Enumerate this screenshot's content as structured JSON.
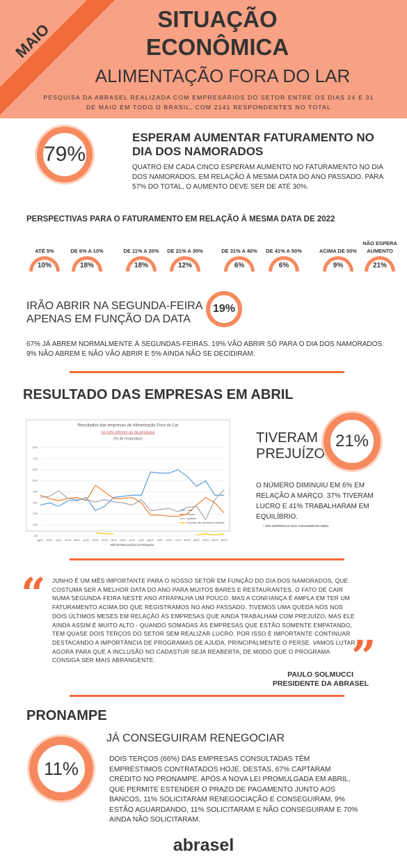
{
  "header": {
    "badge": "MAIO",
    "title_line1": "SITUAÇÃO",
    "title_line2": "ECONÔMICA",
    "subtitle": "ALIMENTAÇÃO FORA DO LAR",
    "description": "PESQUISA DA ABRASEL REALIZADA COM EMPRESÁRIOS DO SETOR ENTRE OS DIAS 24 E 31 DE MAIO EM TODO O BRASIL, COM 2141 RESPONDENTES NO TOTAL"
  },
  "valentines": {
    "percent": "79%",
    "heading": "ESPERAM AUMENTAR FATURAMENTO NO DIA DOS NAMORADOS",
    "text": "QUATRO EM CADA CINCO ESPERAM AUMENTO NO FATURAMENTO NO DIA DOS NAMORADOS, EM RELAÇÃO À MESMA DATA DO ANO PASSADO. PARA 57% DO TOTAL, O AUMENTO DEVE SER DE ATÉ 30%."
  },
  "perspectives": {
    "title": "PERSPECTIVAS PARA O FATURAMENTO EM RELAÇÃO À MESMA DATA DE 2022",
    "items": [
      {
        "label": "ATÉ 5%",
        "value": "10%"
      },
      {
        "label": "DE 6% A 10%",
        "value": "18%"
      },
      {
        "label": "DE 11% A 20%",
        "value": "18%"
      },
      {
        "label": "DE 21% A 30%",
        "value": "12%"
      },
      {
        "label": "DE 31% A 40%",
        "value": "6%"
      },
      {
        "label": "DE 41% A 50%",
        "value": "6%"
      },
      {
        "label": "ACIMA DE 50%",
        "value": "9%"
      },
      {
        "label": "NÃO ESPERA AUMENTO",
        "value": "21%"
      }
    ]
  },
  "monday": {
    "heading": "IRÃO ABRIR NA SEGUNDA-FEIRA APENAS EM FUNÇÃO DA DATA",
    "percent": "19%",
    "text": "67% JÁ ABREM NORMALMENTE À SEGUNDAS-FEIRAS. 19% VÃO ABRIR SÓ PARA O DIA DOS NAMORADOS. 9% NÃO ABREM E NÃO VÃO ABRIR E 5% AINDA NÃO SE DECIDIRAM."
  },
  "april": {
    "title": "RESULTADO DAS EMPRESAS EM ABRIL",
    "heading": "TIVERAM PREJUÍZO",
    "percent": "21%",
    "text": "O NÚMERO DIMINUIU EM 6% EM RELAÇÃO A MARÇO. 37% TIVERAM LUCRO E 41% TRABALHARAM EM EQUILÍBRIO.",
    "footnote": "* 15% EMPRESAS NÃO CONSIDERAM ABRIL"
  },
  "chart_data": {
    "type": "line",
    "title": "Resultados das empresas de Alimentação Fora do Lar",
    "subtitle": "no mês anterior ao da pesquisa",
    "note": "(% de respostas)",
    "x_label": "MÊS DE REALIZAÇÃO DA PESQUISA",
    "categories": [
      "ago/21",
      "set/21",
      "out/21",
      "nov/21",
      "dez/21",
      "jan/22",
      "fev/22",
      "mar/22",
      "abr/22",
      "mai/22",
      "jun/22",
      "jul/22",
      "ago/22",
      "set/22",
      "out/22",
      "nov/22",
      "dez/22",
      "jan/23",
      "fev/23",
      "mar/23",
      "abr/23"
    ],
    "series": [
      {
        "name": "Lucro",
        "color": "#5b9bd5",
        "values": [
          28,
          30,
          27,
          32,
          32,
          35,
          23,
          27,
          35,
          36,
          37,
          37,
          58,
          57,
          57,
          60,
          54,
          45,
          50,
          37,
          37
        ]
      },
      {
        "name": "Prejuízo",
        "color": "#ed7d31",
        "values": [
          37,
          34,
          32,
          34,
          35,
          32,
          46,
          40,
          34,
          34,
          35,
          30,
          19,
          19,
          18,
          18,
          20,
          28,
          35,
          30,
          21
        ]
      },
      {
        "name": "Equilíbrio",
        "color": "#a5a5a5",
        "values": [
          35,
          36,
          41,
          34,
          33,
          33,
          31,
          33,
          31,
          30,
          28,
          33,
          23,
          24,
          25,
          22,
          26,
          27,
          15,
          33,
          42
        ]
      },
      {
        "name": "Empresas não abertas/sem atividade",
        "color": "#ffc000",
        "values": [
          null,
          null,
          null,
          null,
          null,
          null,
          3,
          2,
          2,
          null,
          null,
          null,
          null,
          null,
          null,
          null,
          null,
          1,
          2,
          1,
          2
        ]
      }
    ],
    "ylim": [
      0,
      80
    ],
    "yticks": [
      {
        "value": 0,
        "label": "0%"
      },
      {
        "value": 10,
        "label": "10%"
      },
      {
        "value": 20,
        "label": "20%"
      },
      {
        "value": 30,
        "label": "30%"
      },
      {
        "value": 40,
        "label": "40%"
      },
      {
        "value": 50,
        "label": "50%"
      },
      {
        "value": 60,
        "label": "60%"
      },
      {
        "value": 70,
        "label": "70%"
      },
      {
        "value": 80,
        "label": "80%"
      }
    ],
    "grid": true
  },
  "quote": {
    "text": "JUNHO É UM MÊS IMPORTANTE PARA O NOSSO SETOR EM FUNÇÃO DO DIA DOS NAMORADOS, QUE COSTUMA SER A MELHOR DATA DO ANO PARA MUITOS BARES E RESTAURANTES. O FATO DE CAIR NUMA SEGUNDA-FEIRA NESTE ANO ATRAPALHA UM POUCO, MAS A CONFIANÇA É AMPLA EM TER UM FATURAMENTO ACIMA DO QUE REGISTRAMOS NO ANO PASSADO. TIVEMOS UMA QUEDA NOS NOS DOIS ÚLTIMOS MESES EM RELAÇÃO ÀS EMPRESAS QUE AINDA TRABALHAM COM PREJUÍZO, MAS ELE AINDA ASSIM É MUITO ALTO - QUANDO SOMADAS ÀS EMPRESAS QUE ESTÃO SOMENTE EMPATANDO, TEM QUASE DOIS TERÇOS DO SETOR SEM REALIZAR LUCRO. POR ISSO É IMPORTANTE CONTINUAR DESTACANDO A IMPORTÂNCIA DE PROGRAMAS DE AJUDA, PRINCIPALMENTE O PERSE. VAMOS LUTAR AGORA PARA QUE A INCLUSÃO NO CADASTUR SEJA REABERTA, DE MODO QUE O PROGRAMA CONSIGA SER MAIS ABRANGENTE.",
    "author": "PAULO SOLMUCCI",
    "role": "PRESIDENTE DA ABRASEL"
  },
  "pronampe": {
    "title": "PRONAMPE",
    "heading": "JÁ CONSEGUIRAM RENEGOCIAR",
    "percent": "11%",
    "text": "DOIS TERÇOS (66%) DAS EMPRESAS CONSULTADAS TÊM EMPRÉSTIMOS CONTRATADOS HOJE. DESTAS, 67% CAPTARAM CRÉDITO NO PRONAMPE. APÓS A NOVA LEI PROMULGADA EM ABRIL, QUE PERMITE ESTENDER O PRAZO DE PAGAMENTO JUNTO AOS BANCOS, 11% SOLICITARAM RENEGOCIAÇÃO E CONSEGUIRAM, 9% ESTÃO AGUARDANDO, 11% SOLICITARAM E NÃO CONSEGUIRAM E 70% AINDA NÃO SOLICITARAM."
  },
  "footer": {
    "logo": "abrasel"
  }
}
